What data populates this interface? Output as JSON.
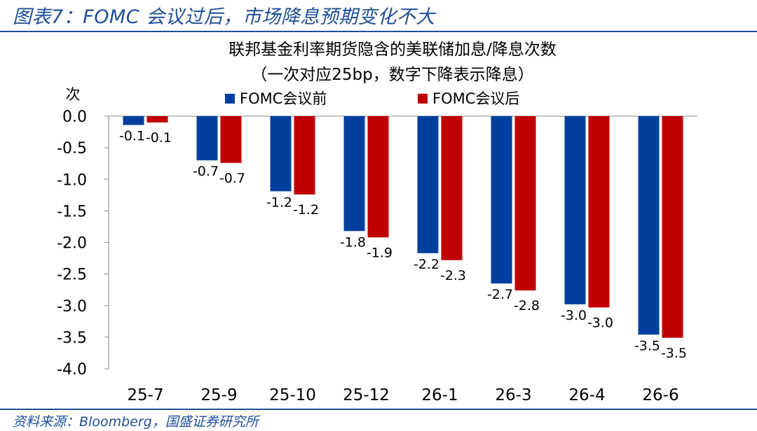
{
  "figure_title": "图表7：FOMC 会议过后，市场降息预期变化不大",
  "source": "资料来源：Bloomberg，国盛证券研究所",
  "colors": {
    "brand": "#1f4e99",
    "series_before": "#003f9e",
    "series_after": "#c00000"
  },
  "chart_data": {
    "type": "bar",
    "title": "联邦基金利率期货隐含的美联储加息/降息次数",
    "subtitle": "（一次对应25bp，数字下降表示降息）",
    "ylabel": "次",
    "xlabel": "",
    "ylim": [
      -4.0,
      0.0
    ],
    "yticks": [
      "0.0",
      "-0.5",
      "-1.0",
      "-1.5",
      "-2.0",
      "-2.5",
      "-3.0",
      "-3.5",
      "-4.0"
    ],
    "categories": [
      "25-7",
      "25-9",
      "25-10",
      "25-12",
      "26-1",
      "26-3",
      "26-4",
      "26-6"
    ],
    "series": [
      {
        "name": "FOMC会议前",
        "color": "#003f9e",
        "values": [
          -0.14,
          -0.7,
          -1.19,
          -1.82,
          -2.17,
          -2.65,
          -2.98,
          -3.46
        ],
        "labels": [
          "-0.1",
          "-0.7",
          "-1.2",
          "-1.8",
          "-2.2",
          "-2.7",
          "-3.0",
          "-3.5"
        ]
      },
      {
        "name": "FOMC会议后",
        "color": "#c00000",
        "values": [
          -0.1,
          -0.74,
          -1.24,
          -1.92,
          -2.28,
          -2.76,
          -3.03,
          -3.51
        ],
        "labels": [
          "-0.1",
          "-0.7",
          "-1.2",
          "-1.9",
          "-2.3",
          "-2.8",
          "-3.0",
          "-3.5"
        ]
      }
    ],
    "legend": "top-center",
    "grid": false
  }
}
